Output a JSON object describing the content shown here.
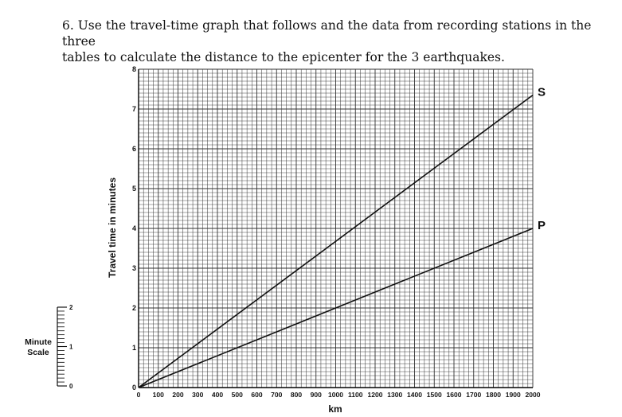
{
  "question": {
    "line1": "6.  Use the travel-time graph that follows and the data from recording stations in the three",
    "line2": "tables to calculate the distance to the epicenter for the 3 earthquakes."
  },
  "chart_data": {
    "type": "line",
    "title": "",
    "xlabel": "km",
    "ylabel": "Travel time in minutes",
    "xlim": [
      0,
      2000
    ],
    "ylim": [
      0,
      8
    ],
    "grid": true,
    "x_ticks": [
      0,
      100,
      200,
      300,
      400,
      500,
      600,
      700,
      800,
      900,
      1000,
      1100,
      1200,
      1300,
      1400,
      1500,
      1600,
      1700,
      1800,
      1900,
      2000
    ],
    "y_ticks": [
      0,
      1,
      2,
      3,
      4,
      5,
      6,
      7,
      8
    ],
    "series": [
      {
        "name": "S",
        "x": [
          0,
          2000
        ],
        "y": [
          0,
          7.35
        ]
      },
      {
        "name": "P",
        "x": [
          0,
          2000
        ],
        "y": [
          0,
          4.0
        ]
      }
    ],
    "line_color": "#111111",
    "grid_color": "#333333"
  },
  "minute_scale": {
    "label_line1": "Minute",
    "label_line2": "Scale",
    "ticks": [
      0,
      1,
      2
    ]
  }
}
